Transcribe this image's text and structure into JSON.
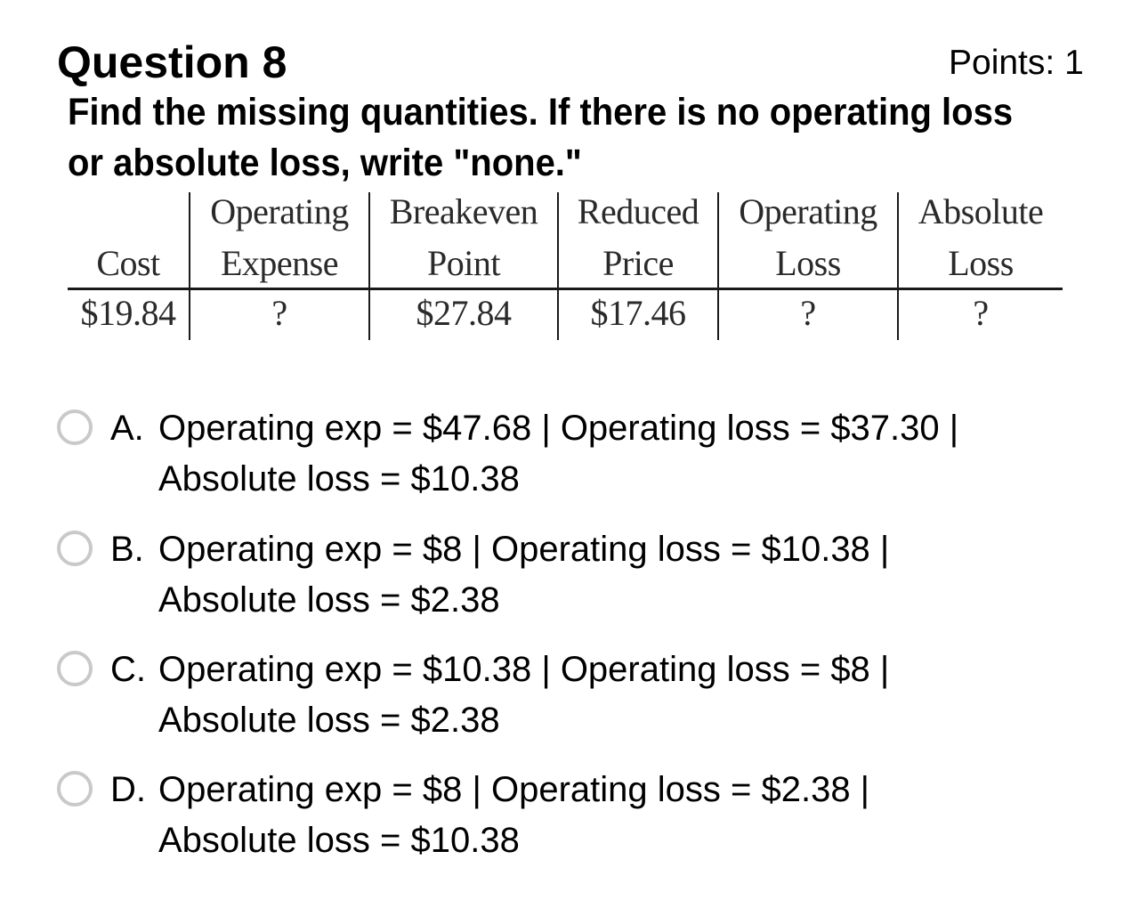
{
  "question": {
    "title": "Question 8",
    "points": "Points: 1",
    "prompt_line1": "Find the missing quantities. If there is no operating loss",
    "prompt_line2": "or absolute loss, write \"none.\""
  },
  "table": {
    "headers": [
      {
        "line1": "",
        "line2": "Cost"
      },
      {
        "line1": "Operating",
        "line2": "Expense"
      },
      {
        "line1": "Breakeven",
        "line2": "Point"
      },
      {
        "line1": "Reduced",
        "line2": "Price"
      },
      {
        "line1": "Operating",
        "line2": "Loss"
      },
      {
        "line1": "Absolute",
        "line2": "Loss"
      }
    ],
    "row": [
      "$19.84",
      "?",
      "$27.84",
      "$17.46",
      "?",
      "?"
    ]
  },
  "options": [
    {
      "letter": "A.",
      "line1": "Operating exp = $47.68 | Operating loss = $37.30 |",
      "line2": "Absolute loss = $10.38"
    },
    {
      "letter": "B.",
      "line1": "Operating exp = $8 | Operating loss = $10.38 |",
      "line2": "Absolute loss = $2.38"
    },
    {
      "letter": "C.",
      "line1": "Operating exp = $10.38 | Operating loss = $8 |",
      "line2": "Absolute loss = $2.38"
    },
    {
      "letter": "D.",
      "line1": "Operating exp = $8 | Operating loss = $2.38 |",
      "line2": "Absolute loss = $10.38"
    }
  ]
}
